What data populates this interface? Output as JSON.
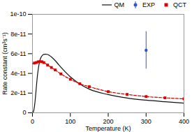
{
  "chart_data": {
    "type": "line",
    "xlabel": "Temperature (K)",
    "ylabel": "Rate constant (cm³s⁻¹)",
    "xlim": [
      0,
      400
    ],
    "ylim": [
      0,
      1e-10
    ],
    "xticks": [
      0,
      100,
      200,
      300,
      400
    ],
    "yticks": [
      0,
      {
        "value": 2e-11,
        "label": "2e-11"
      },
      {
        "value": 4e-11,
        "label": "4e-11"
      },
      {
        "value": 6e-11,
        "label": "6e-11"
      },
      {
        "value": 8e-11,
        "label": "8e-11"
      },
      {
        "value": 1e-10,
        "label": "1e-10"
      }
    ],
    "grid": false,
    "legend": "upper right",
    "series": [
      {
        "name": "QM",
        "type": "line",
        "line_style": "solid",
        "color": "#111111",
        "x": [
          0.1,
          1,
          2,
          3,
          4,
          5,
          6,
          7,
          8,
          10,
          12,
          15,
          18,
          20,
          25,
          30,
          35,
          40,
          45,
          50,
          60,
          70,
          80,
          100,
          120,
          150,
          200,
          250,
          300,
          350,
          400
        ],
        "values": [
          0,
          2e-13,
          8e-13,
          1.8e-12,
          3.5e-12,
          5.8e-12,
          8.8e-12,
          1.22e-11,
          1.62e-11,
          2.5e-11,
          3.35e-11,
          4.35e-11,
          5.05e-11,
          5.38e-11,
          5.78e-11,
          5.93e-11,
          5.95e-11,
          5.92e-11,
          5.82e-11,
          5.68e-11,
          5.3e-11,
          4.85e-11,
          4.42e-11,
          3.65e-11,
          3.05e-11,
          2.4e-11,
          1.85e-11,
          1.5e-11,
          1.28e-11,
          1.12e-11,
          9.8e-12
        ]
      },
      {
        "name": "EXP",
        "type": "scatter",
        "marker": "circle",
        "color": "#3355cc",
        "x": [
          300
        ],
        "values": [
          6.35e-11
        ],
        "error_lower": [
          1.9e-11
        ],
        "error_upper": [
          1.9e-11
        ]
      },
      {
        "type": "line",
        "line_style": "dashed",
        "color": "#dd0000",
        "x": [
          0.1,
          1,
          2,
          3,
          5,
          8,
          10,
          15,
          20,
          30,
          40,
          50,
          60,
          75,
          100,
          125,
          150,
          200,
          250,
          300,
          350,
          400
        ],
        "values": [
          5e-11,
          5e-11,
          5.01e-11,
          5.02e-11,
          5.05e-11,
          5.1e-11,
          5.1e-11,
          5.18e-11,
          5.2e-11,
          5.1e-11,
          4.85e-11,
          4.6e-11,
          4.35e-11,
          3.95e-11,
          3.4e-11,
          2.95e-11,
          2.65e-11,
          2.15e-11,
          1.87e-11,
          1.65e-11,
          1.52e-11,
          1.42e-11
        ]
      },
      {
        "name": "QCT",
        "type": "scatter",
        "marker": "square",
        "color": "#dd0000",
        "x": [
          5,
          10,
          15,
          20,
          25,
          30,
          40,
          50,
          60,
          75,
          100,
          125,
          150,
          200,
          250,
          300,
          350,
          400
        ],
        "values": [
          5.05e-11,
          5.1e-11,
          5.18e-11,
          5.2e-11,
          5.18e-11,
          5.1e-11,
          4.85e-11,
          4.6e-11,
          4.35e-11,
          3.95e-11,
          3.4e-11,
          2.95e-11,
          2.65e-11,
          2.15e-11,
          1.87e-11,
          1.65e-11,
          1.52e-11,
          1.42e-11
        ]
      }
    ]
  }
}
